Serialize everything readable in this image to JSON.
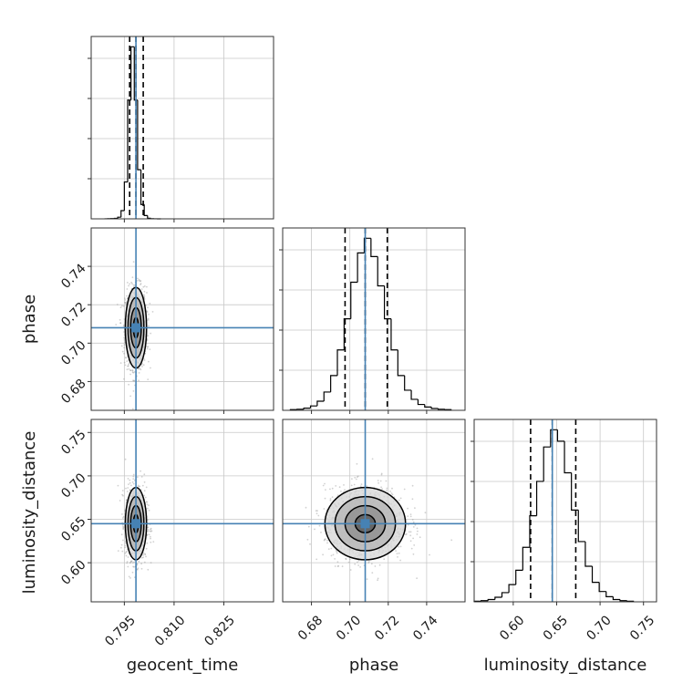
{
  "colors": {
    "truth": "#4682b4",
    "hist": "#000000",
    "contour": "#000000",
    "points": "#9a9a9a",
    "grid": "#c8c8c8",
    "frame": "#333333"
  },
  "chart_data": {
    "type": "corner",
    "parameters": [
      "geocent_time",
      "phase",
      "luminosity_distance"
    ],
    "truths": {
      "geocent_time": 0.7985,
      "phase": 0.708,
      "luminosity_distance": 0.645
    },
    "axes": {
      "geocent_time": {
        "range": [
          0.785,
          0.84
        ],
        "ticks": [
          0.795,
          0.81,
          0.825
        ],
        "tick_labels": [
          "0.795",
          "0.810",
          "0.825"
        ]
      },
      "phase": {
        "range": [
          0.665,
          0.76
        ],
        "ticks": [
          0.68,
          0.7,
          0.72,
          0.74
        ],
        "tick_labels": [
          "0.68",
          "0.70",
          "0.72",
          "0.74"
        ]
      },
      "luminosity_distance": {
        "range": [
          0.555,
          0.765
        ],
        "ticks": [
          0.6,
          0.65,
          0.7,
          0.75
        ],
        "tick_labels": [
          "0.60",
          "0.65",
          "0.70",
          "0.75"
        ]
      }
    },
    "histograms": {
      "geocent_time": {
        "edges": [
          0.7892,
          0.79,
          0.791,
          0.792,
          0.793,
          0.794,
          0.795,
          0.796,
          0.797,
          0.798,
          0.799,
          0.8,
          0.801,
          0.802,
          0.803,
          0.804,
          0.805,
          0.806
        ],
        "counts": [
          1,
          3,
          6,
          12,
          40,
          200,
          900,
          2900,
          4200,
          2900,
          1200,
          350,
          80,
          15,
          4,
          1,
          0
        ],
        "quantiles": [
          0.7966,
          0.7985,
          0.8007
        ]
      },
      "phase": {
        "edges": [
          0.669,
          0.6725,
          0.676,
          0.6795,
          0.683,
          0.6865,
          0.69,
          0.6935,
          0.697,
          0.7005,
          0.704,
          0.7075,
          0.711,
          0.7145,
          0.718,
          0.7215,
          0.725,
          0.7285,
          0.732,
          0.7355,
          0.739,
          0.7425,
          0.746,
          0.7495,
          0.753
        ],
        "counts": [
          2,
          3,
          6,
          12,
          25,
          50,
          95,
          165,
          250,
          350,
          430,
          470,
          420,
          340,
          250,
          165,
          95,
          55,
          30,
          16,
          9,
          5,
          3,
          2
        ],
        "quantiles": [
          0.6975,
          0.708,
          0.7195
        ]
      },
      "luminosity_distance": {
        "edges": [
          0.555,
          0.563,
          0.571,
          0.579,
          0.587,
          0.595,
          0.603,
          0.611,
          0.619,
          0.627,
          0.635,
          0.643,
          0.651,
          0.659,
          0.667,
          0.675,
          0.683,
          0.691,
          0.699,
          0.707,
          0.715,
          0.723,
          0.731,
          0.739
        ],
        "counts": [
          1,
          2,
          4,
          8,
          16,
          30,
          55,
          95,
          150,
          210,
          270,
          300,
          280,
          225,
          160,
          105,
          62,
          34,
          18,
          9,
          4,
          2,
          1
        ],
        "quantiles": [
          0.62,
          0.645,
          0.672
        ]
      }
    },
    "posterior": {
      "means": [
        0.7985,
        0.708,
        0.645
      ],
      "sigmas": [
        0.0016,
        0.0105,
        0.0208
      ]
    }
  }
}
